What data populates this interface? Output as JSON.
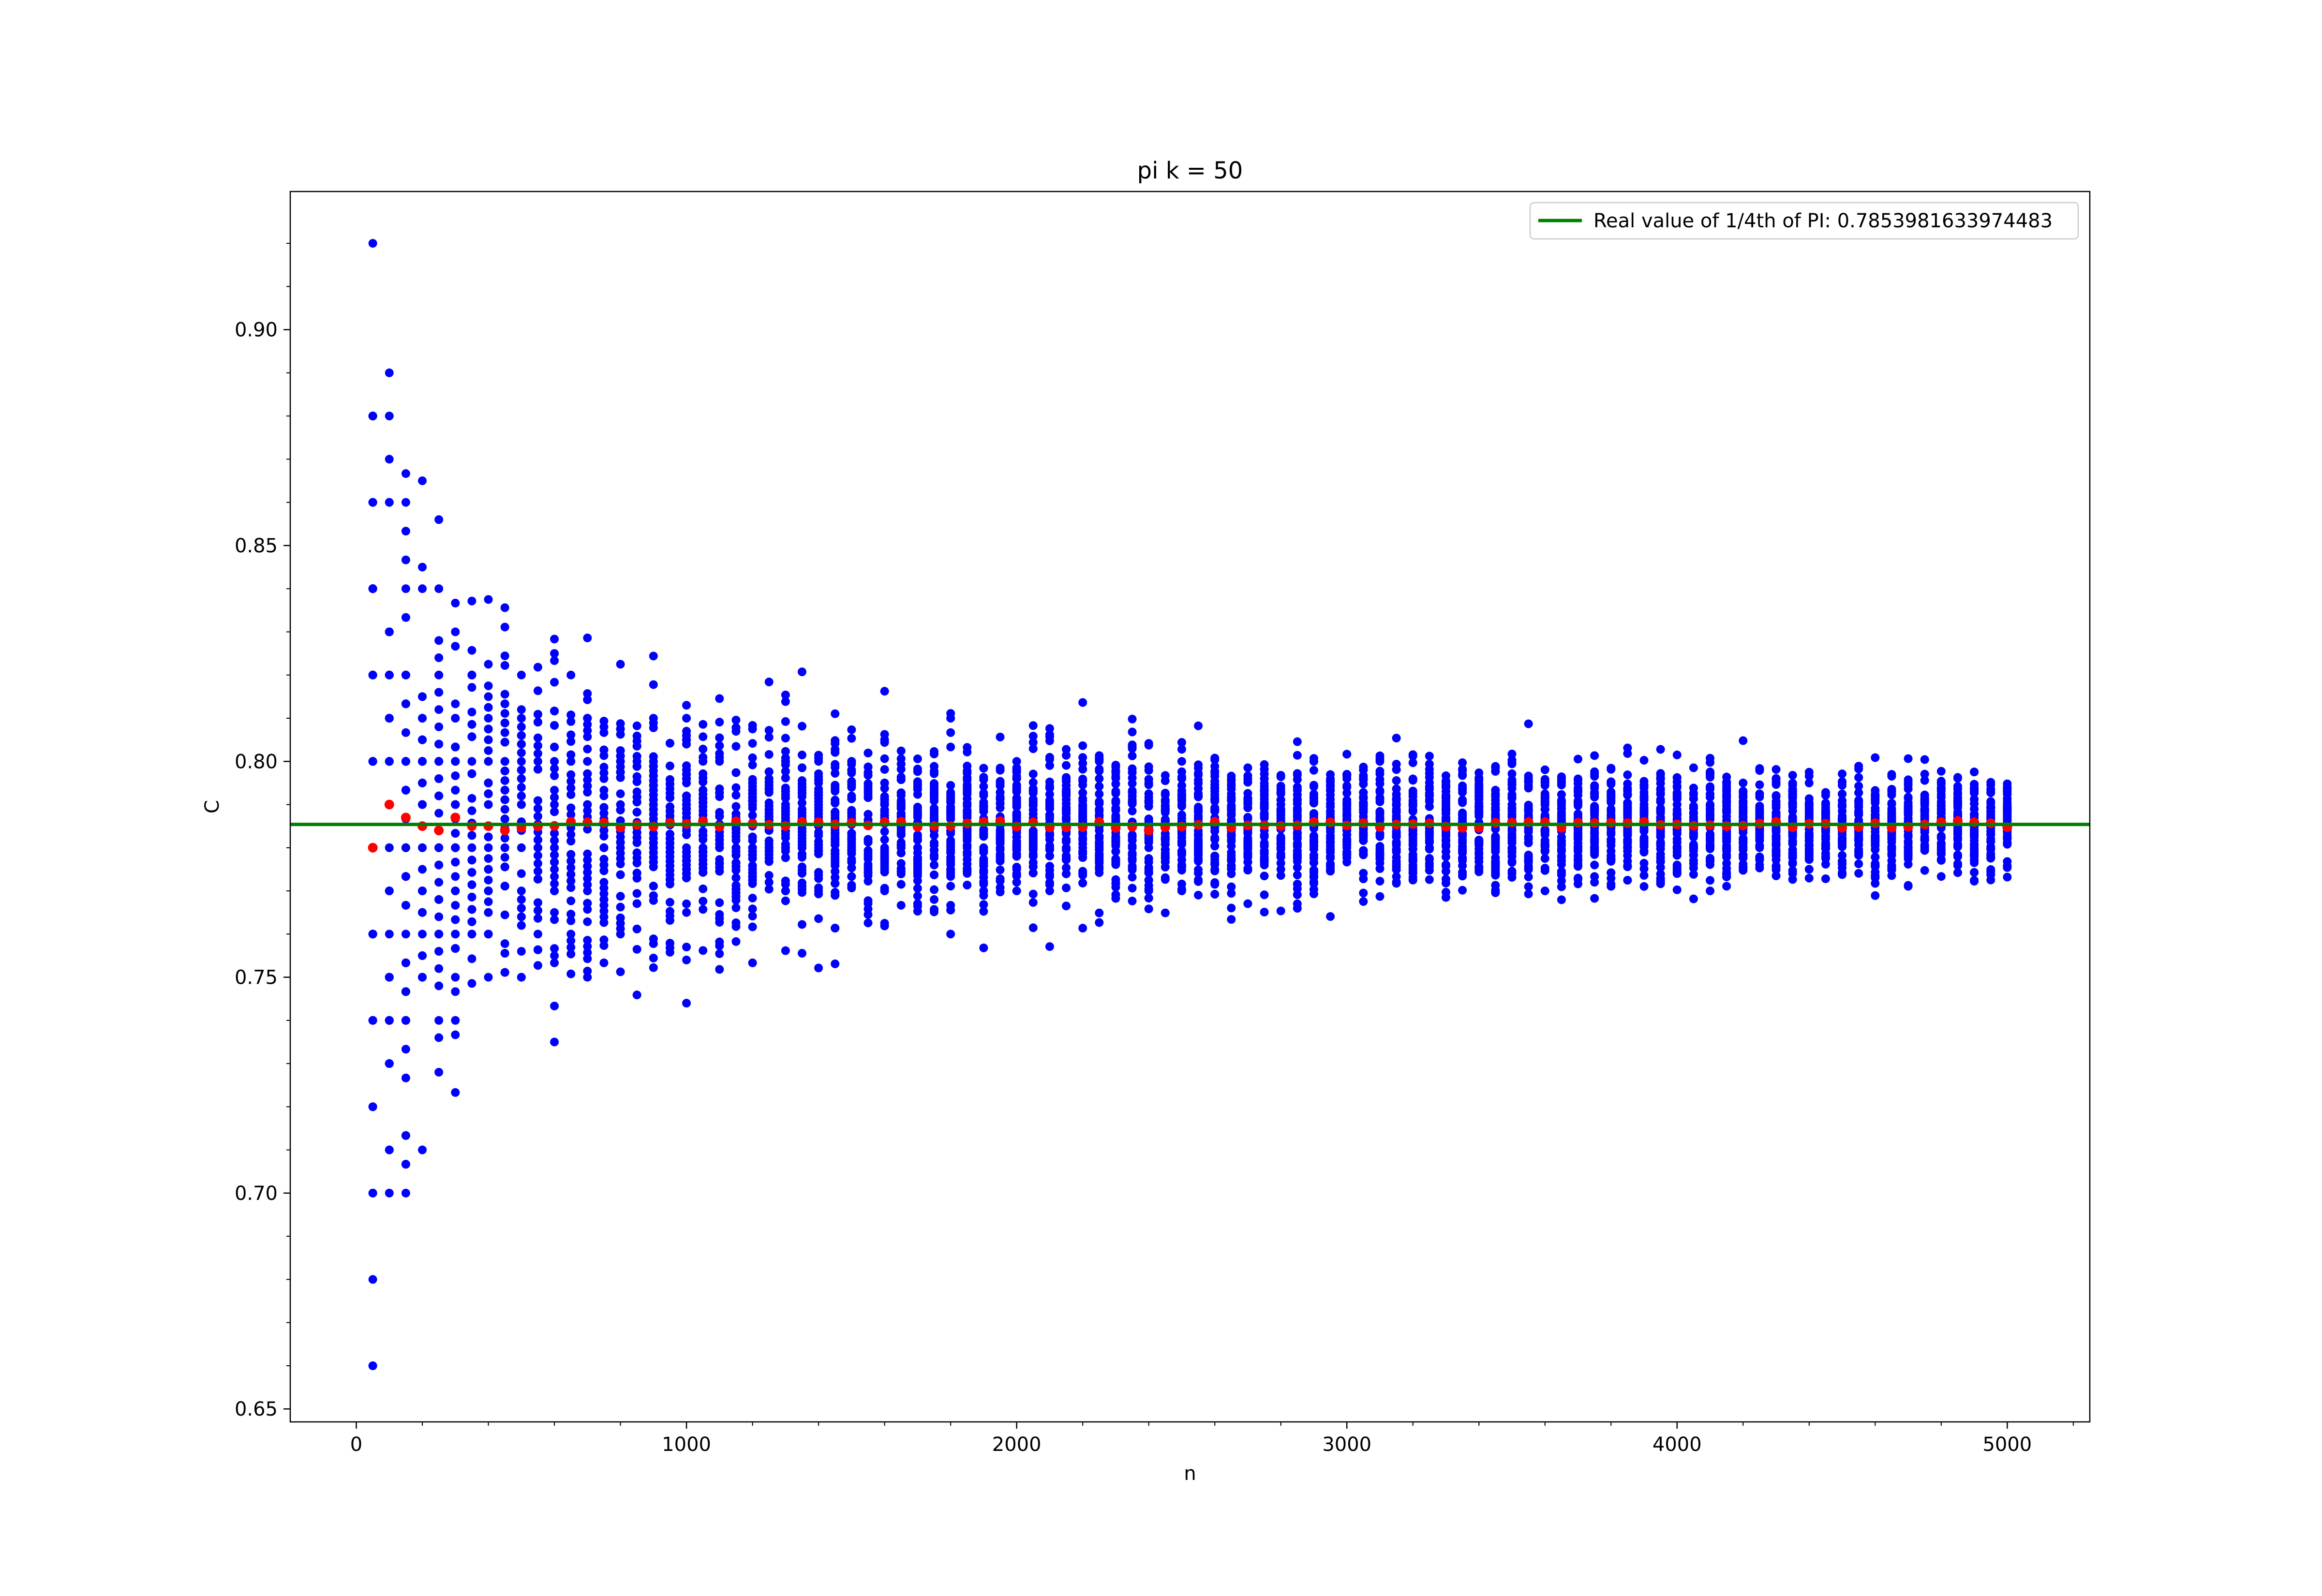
{
  "chart_data": {
    "type": "scatter",
    "title": "pi k = 50",
    "xlabel": "n",
    "ylabel": "C",
    "xlim": [
      -200,
      5250
    ],
    "ylim": [
      0.647,
      0.932
    ],
    "xticks": [
      0,
      1000,
      2000,
      3000,
      4000,
      5000
    ],
    "xtick_labels": [
      "0",
      "1000",
      "2000",
      "3000",
      "4000",
      "5000"
    ],
    "yticks": [
      0.65,
      0.7,
      0.75,
      0.8,
      0.85,
      0.9
    ],
    "ytick_labels": [
      "0.65",
      "0.70",
      "0.75",
      "0.80",
      "0.85",
      "0.90"
    ],
    "grid": false,
    "legend_position": "top-right",
    "reference_line": {
      "name": "Real value of 1/4th of PI: 0.7853981633974483",
      "y": 0.7853981633974483,
      "color": "#008000"
    },
    "series": [
      {
        "color": "#0000ff",
        "description": "50 trial estimates of C per n (n = 50 to 5000, step 50), spread approximately 1.3/sqrt(n)*0.41 around pi/4",
        "x_start": 50,
        "x_step": 50,
        "x_count": 100,
        "trials_per_x": 50,
        "spread_sd_at_n50": 0.058,
        "extremes": [
          {
            "x": 50,
            "y": 0.92
          },
          {
            "x": 50,
            "y": 0.66
          },
          {
            "x": 100,
            "y": 0.89
          },
          {
            "x": 50,
            "y": 0.86
          },
          {
            "x": 100,
            "y": 0.86
          },
          {
            "x": 150,
            "y": 0.86
          },
          {
            "x": 150,
            "y": 0.7067
          },
          {
            "x": 50,
            "y": 0.7
          },
          {
            "x": 100,
            "y": 0.7
          },
          {
            "x": 150,
            "y": 0.7
          },
          {
            "x": 300,
            "y": 0.7233
          },
          {
            "x": 450,
            "y": 0.8356
          },
          {
            "x": 600,
            "y": 0.735
          },
          {
            "x": 700,
            "y": 0.8286
          },
          {
            "x": 850,
            "y": 0.7459
          },
          {
            "x": 900,
            "y": 0.8244
          },
          {
            "x": 1450,
            "y": 0.7531
          },
          {
            "x": 1900,
            "y": 0.7568
          },
          {
            "x": 2100,
            "y": 0.7571
          },
          {
            "x": 2350,
            "y": 0.8098
          },
          {
            "x": 3550,
            "y": 0.8087
          },
          {
            "x": 4200,
            "y": 0.8048
          }
        ]
      },
      {
        "color": "#ff0000",
        "description": "Mean of the trials at each n",
        "points": [
          {
            "x": 50,
            "y": 0.78
          },
          {
            "x": 100,
            "y": 0.79
          },
          {
            "x": 150,
            "y": 0.787
          },
          {
            "x": 200,
            "y": 0.785
          },
          {
            "x": 250,
            "y": 0.784
          },
          {
            "x": 300,
            "y": 0.787
          },
          {
            "x": 350,
            "y": 0.785
          },
          {
            "x": 400,
            "y": 0.785
          },
          {
            "x": 450,
            "y": 0.784
          },
          {
            "x": 650,
            "y": 0.786
          },
          {
            "x": 1650,
            "y": 0.786
          },
          {
            "x": 2400,
            "y": 0.784
          }
        ]
      }
    ]
  }
}
